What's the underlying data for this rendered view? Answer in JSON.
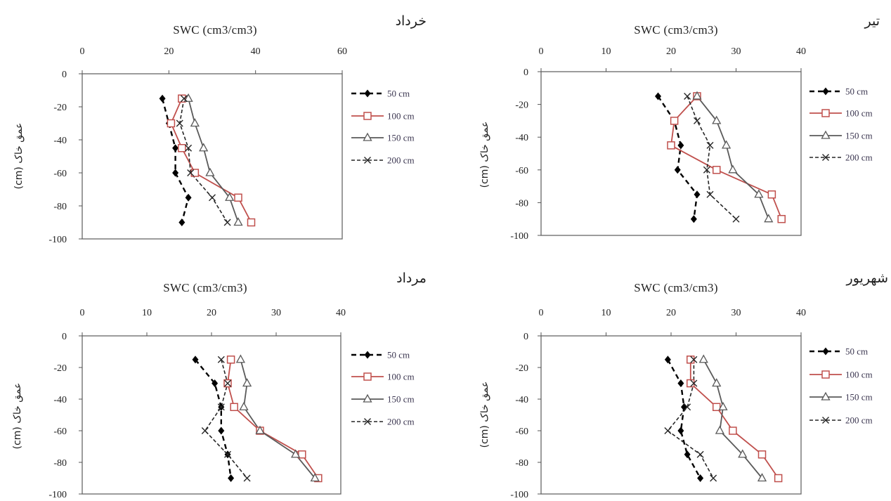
{
  "chart_data": [
    {
      "type": "line",
      "title": "خرداد",
      "xlabel": "SWC (cm3/cm3)",
      "ylabel": "عمق خاک (cm)",
      "xaxis": "top",
      "legend": "right",
      "grid": false,
      "xlim": [
        0,
        60
      ],
      "xticks": [
        0,
        20,
        40,
        60
      ],
      "ylim": [
        -100,
        0
      ],
      "yticks": [
        0,
        -20,
        -40,
        -60,
        -80,
        -100
      ],
      "y": [
        -15,
        -30,
        -45,
        -60,
        -75,
        -90
      ],
      "series": [
        {
          "name": "50 cm",
          "color": "#000000",
          "line": "dashed",
          "marker": "diamond",
          "x": [
            18.5,
            20.0,
            21.5,
            21.5,
            24.5,
            23.0
          ]
        },
        {
          "name": "100 cm",
          "color": "#c0504d",
          "line": "solid",
          "marker": "square",
          "x": [
            23.0,
            20.5,
            23.0,
            26.0,
            36.0,
            39.0
          ]
        },
        {
          "name": "150 cm",
          "color": "#5a5a5a",
          "line": "solid",
          "marker": "triangle",
          "x": [
            24.5,
            26.0,
            28.0,
            29.5,
            34.0,
            36.0
          ]
        },
        {
          "name": "200 cm",
          "color": "#262626",
          "line": "dashed",
          "marker": "x",
          "x": [
            23.5,
            22.5,
            24.5,
            25.0,
            30.0,
            33.5
          ]
        }
      ]
    },
    {
      "type": "line",
      "title": "تیر",
      "xlabel": "SWC (cm3/cm3)",
      "ylabel": "عمق خاک (cm)",
      "xaxis": "top",
      "legend": "right",
      "grid": false,
      "xlim": [
        0,
        40
      ],
      "xticks": [
        0,
        10,
        20,
        30,
        40
      ],
      "ylim": [
        -100,
        0
      ],
      "yticks": [
        0,
        -20,
        -40,
        -60,
        -80,
        -100
      ],
      "y": [
        -15,
        -30,
        -45,
        -60,
        -75,
        -90
      ],
      "series": [
        {
          "name": "50 cm",
          "color": "#000000",
          "line": "dashed",
          "marker": "diamond",
          "x": [
            18.0,
            20.5,
            21.5,
            21.0,
            24.0,
            23.5
          ]
        },
        {
          "name": "100 cm",
          "color": "#c0504d",
          "line": "solid",
          "marker": "square",
          "x": [
            24.0,
            20.5,
            20.0,
            27.0,
            35.5,
            37.0
          ]
        },
        {
          "name": "150 cm",
          "color": "#5a5a5a",
          "line": "solid",
          "marker": "triangle",
          "x": [
            24.0,
            27.0,
            28.5,
            29.5,
            33.5,
            35.0
          ]
        },
        {
          "name": "200 cm",
          "color": "#262626",
          "line": "dashed",
          "marker": "x",
          "x": [
            22.5,
            24.0,
            26.0,
            25.5,
            26.0,
            30.0
          ]
        }
      ]
    },
    {
      "type": "line",
      "title": "مرداد",
      "xlabel": "SWC (cm3/cm3)",
      "ylabel": "عمق خاک (cm)",
      "xaxis": "top",
      "legend": "right",
      "grid": false,
      "xlim": [
        0,
        40
      ],
      "xticks": [
        0,
        10,
        20,
        30,
        40
      ],
      "ylim": [
        -100,
        0
      ],
      "yticks": [
        0,
        -20,
        -40,
        -60,
        -80,
        -100
      ],
      "y": [
        -15,
        -30,
        -45,
        -60,
        -75,
        -90
      ],
      "series": [
        {
          "name": "50 cm",
          "color": "#000000",
          "line": "dashed",
          "marker": "diamond",
          "x": [
            17.5,
            20.5,
            21.5,
            21.5,
            22.5,
            23.0
          ]
        },
        {
          "name": "100 cm",
          "color": "#c0504d",
          "line": "solid",
          "marker": "square",
          "x": [
            23.0,
            22.5,
            23.5,
            27.5,
            34.0,
            36.5
          ]
        },
        {
          "name": "150 cm",
          "color": "#5a5a5a",
          "line": "solid",
          "marker": "triangle",
          "x": [
            24.5,
            25.5,
            25.0,
            27.5,
            33.0,
            36.0
          ]
        },
        {
          "name": "200 cm",
          "color": "#262626",
          "line": "dashed",
          "marker": "x",
          "x": [
            21.5,
            22.5,
            21.5,
            19.0,
            22.5,
            25.5
          ]
        }
      ]
    },
    {
      "type": "line",
      "title": "شهریور",
      "xlabel": "SWC (cm3/cm3)",
      "ylabel": "عمق خاک (cm)",
      "xaxis": "top",
      "legend": "right",
      "grid": false,
      "xlim": [
        0,
        40
      ],
      "xticks": [
        0,
        10,
        20,
        30,
        40
      ],
      "ylim": [
        -100,
        0
      ],
      "yticks": [
        0,
        -20,
        -40,
        -60,
        -80,
        -100
      ],
      "y": [
        -15,
        -30,
        -45,
        -60,
        -75,
        -90
      ],
      "series": [
        {
          "name": "50 cm",
          "color": "#000000",
          "line": "dashed",
          "marker": "diamond",
          "x": [
            19.5,
            21.5,
            22.0,
            21.5,
            22.5,
            24.5
          ]
        },
        {
          "name": "100 cm",
          "color": "#c0504d",
          "line": "solid",
          "marker": "square",
          "x": [
            23.0,
            23.0,
            27.0,
            29.5,
            34.0,
            36.5
          ]
        },
        {
          "name": "150 cm",
          "color": "#5a5a5a",
          "line": "solid",
          "marker": "triangle",
          "x": [
            25.0,
            27.0,
            28.0,
            27.5,
            31.0,
            34.0
          ]
        },
        {
          "name": "200 cm",
          "color": "#262626",
          "line": "dashed",
          "marker": "x",
          "x": [
            23.5,
            23.5,
            22.5,
            19.5,
            24.5,
            26.5
          ]
        }
      ]
    }
  ]
}
